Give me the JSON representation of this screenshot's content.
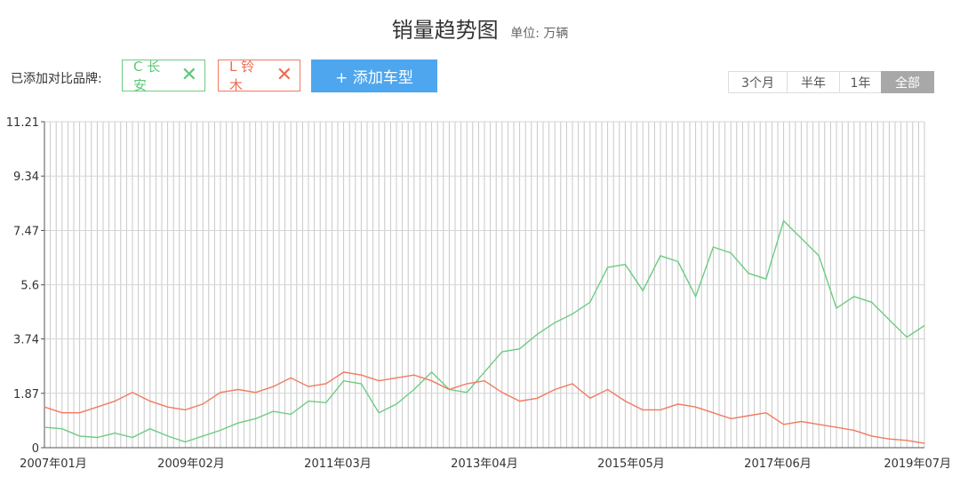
{
  "header": {
    "title": "销量趋势图",
    "unit": "单位: 万辆"
  },
  "compare": {
    "label": "已添加对比品牌:",
    "brands": [
      {
        "text": "C 长安",
        "close": "✕"
      },
      {
        "text": "L 铃木",
        "close": "✕"
      }
    ],
    "add_label": "+ 添加车型"
  },
  "ranges": [
    {
      "label": "3个月"
    },
    {
      "label": "半年"
    },
    {
      "label": "1年"
    },
    {
      "label": "全部"
    }
  ],
  "colors": {
    "changan": "#6dcc84",
    "suzuki": "#f17a5f",
    "accent": "#4ea6ee",
    "grid": "#c8c8c8"
  },
  "chart_data": {
    "type": "line",
    "ylim": [
      0,
      11.21
    ],
    "y_ticks": [
      "0",
      "1.87",
      "3.74",
      "5.6",
      "7.47",
      "9.34",
      "11.21"
    ],
    "x_ticks": [
      {
        "label": "2007年01月",
        "x": "2007-01"
      },
      {
        "label": "2009年02月",
        "x": "2009-02"
      },
      {
        "label": "2011年03月",
        "x": "2011-03"
      },
      {
        "label": "2013年04月",
        "x": "2013-04"
      },
      {
        "label": "2015年05月",
        "x": "2015-05"
      },
      {
        "label": "2017年06月",
        "x": "2017-06"
      },
      {
        "label": "2019年07月",
        "x": "2019-07"
      }
    ],
    "x_range": [
      "2007-01",
      "2019-07"
    ],
    "grid": true,
    "series": [
      {
        "name": "C 长安",
        "key": "changan",
        "points": [
          [
            "2007-01",
            0.7
          ],
          [
            "2007-04",
            0.65
          ],
          [
            "2007-07",
            0.4
          ],
          [
            "2007-10",
            0.35
          ],
          [
            "2008-01",
            0.5
          ],
          [
            "2008-04",
            0.35
          ],
          [
            "2008-07",
            0.65
          ],
          [
            "2008-10",
            0.4
          ],
          [
            "2009-01",
            0.2
          ],
          [
            "2009-04",
            0.4
          ],
          [
            "2009-07",
            0.6
          ],
          [
            "2009-10",
            0.85
          ],
          [
            "2010-01",
            1.0
          ],
          [
            "2010-04",
            1.25
          ],
          [
            "2010-07",
            1.15
          ],
          [
            "2010-10",
            1.6
          ],
          [
            "2011-01",
            1.55
          ],
          [
            "2011-04",
            2.3
          ],
          [
            "2011-07",
            2.2
          ],
          [
            "2011-10",
            1.2
          ],
          [
            "2012-01",
            1.5
          ],
          [
            "2012-04",
            2.0
          ],
          [
            "2012-07",
            2.6
          ],
          [
            "2012-10",
            2.0
          ],
          [
            "2013-01",
            1.9
          ],
          [
            "2013-04",
            2.6
          ],
          [
            "2013-07",
            3.3
          ],
          [
            "2013-10",
            3.4
          ],
          [
            "2014-01",
            3.9
          ],
          [
            "2014-04",
            4.3
          ],
          [
            "2014-07",
            4.6
          ],
          [
            "2014-10",
            5.0
          ],
          [
            "2015-01",
            6.2
          ],
          [
            "2015-04",
            6.3
          ],
          [
            "2015-07",
            5.4
          ],
          [
            "2015-10",
            6.6
          ],
          [
            "2016-01",
            6.4
          ],
          [
            "2016-04",
            5.2
          ],
          [
            "2016-07",
            6.9
          ],
          [
            "2016-10",
            6.7
          ],
          [
            "2017-01",
            6.0
          ],
          [
            "2017-04",
            5.8
          ],
          [
            "2017-07",
            7.8
          ],
          [
            "2017-10",
            7.2
          ],
          [
            "2018-01",
            6.6
          ],
          [
            "2018-04",
            4.8
          ],
          [
            "2018-07",
            5.2
          ],
          [
            "2018-10",
            5.0
          ],
          [
            "2019-01",
            4.4
          ],
          [
            "2019-04",
            3.8
          ],
          [
            "2019-07",
            4.2
          ]
        ]
      },
      {
        "name": "L 铃木",
        "key": "suzuki",
        "points": [
          [
            "2007-01",
            1.4
          ],
          [
            "2007-04",
            1.2
          ],
          [
            "2007-07",
            1.2
          ],
          [
            "2007-10",
            1.4
          ],
          [
            "2008-01",
            1.6
          ],
          [
            "2008-04",
            1.9
          ],
          [
            "2008-07",
            1.6
          ],
          [
            "2008-10",
            1.4
          ],
          [
            "2009-01",
            1.3
          ],
          [
            "2009-04",
            1.5
          ],
          [
            "2009-07",
            1.9
          ],
          [
            "2009-10",
            2.0
          ],
          [
            "2010-01",
            1.9
          ],
          [
            "2010-04",
            2.1
          ],
          [
            "2010-07",
            2.4
          ],
          [
            "2010-10",
            2.1
          ],
          [
            "2011-01",
            2.2
          ],
          [
            "2011-04",
            2.6
          ],
          [
            "2011-07",
            2.5
          ],
          [
            "2011-10",
            2.3
          ],
          [
            "2012-01",
            2.4
          ],
          [
            "2012-04",
            2.5
          ],
          [
            "2012-07",
            2.3
          ],
          [
            "2012-10",
            2.0
          ],
          [
            "2013-01",
            2.2
          ],
          [
            "2013-04",
            2.3
          ],
          [
            "2013-07",
            1.9
          ],
          [
            "2013-10",
            1.6
          ],
          [
            "2014-01",
            1.7
          ],
          [
            "2014-04",
            2.0
          ],
          [
            "2014-07",
            2.2
          ],
          [
            "2014-10",
            1.7
          ],
          [
            "2015-01",
            2.0
          ],
          [
            "2015-04",
            1.6
          ],
          [
            "2015-07",
            1.3
          ],
          [
            "2015-10",
            1.3
          ],
          [
            "2016-01",
            1.5
          ],
          [
            "2016-04",
            1.4
          ],
          [
            "2016-07",
            1.2
          ],
          [
            "2016-10",
            1.0
          ],
          [
            "2017-01",
            1.1
          ],
          [
            "2017-04",
            1.2
          ],
          [
            "2017-07",
            0.8
          ],
          [
            "2017-10",
            0.9
          ],
          [
            "2018-01",
            0.8
          ],
          [
            "2018-04",
            0.7
          ],
          [
            "2018-07",
            0.6
          ],
          [
            "2018-10",
            0.4
          ],
          [
            "2019-01",
            0.3
          ],
          [
            "2019-04",
            0.25
          ],
          [
            "2019-07",
            0.15
          ]
        ]
      }
    ]
  }
}
